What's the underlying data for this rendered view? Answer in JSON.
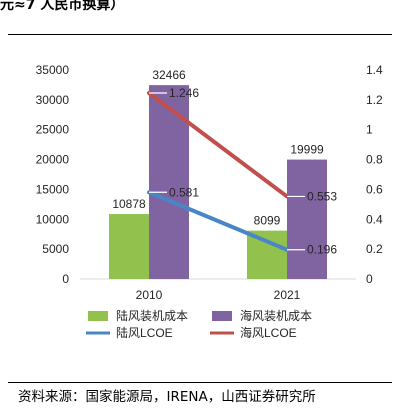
{
  "header": {
    "caption": "元≈7 人民币换算）"
  },
  "footer": {
    "source": "资料来源：国家能源局，IRENA，山西证券研究所"
  },
  "chart_data": {
    "type": "bar",
    "categories": [
      "2010",
      "2021"
    ],
    "series": [
      {
        "name": "陆风装机成本",
        "kind": "bar",
        "axis": "left",
        "color": "#92c24d",
        "values": [
          10878,
          8099
        ],
        "labels": [
          "10878",
          "8099"
        ]
      },
      {
        "name": "海风装机成本",
        "kind": "bar",
        "axis": "left",
        "color": "#8064a2",
        "values": [
          32466,
          19999
        ],
        "labels": [
          "32466",
          "19999"
        ]
      },
      {
        "name": "陆风LCOE",
        "kind": "line",
        "axis": "right",
        "color": "#4a86c5",
        "values": [
          0.581,
          0.196
        ],
        "labels": [
          "0.581",
          "0.196"
        ]
      },
      {
        "name": "海风LCOE",
        "kind": "line",
        "axis": "right",
        "color": "#c0504d",
        "values": [
          1.246,
          0.553
        ],
        "labels": [
          "1.246",
          "0.553"
        ]
      }
    ],
    "left_axis": {
      "min": 0,
      "max": 35000,
      "ticks": [
        "0",
        "5000",
        "10000",
        "15000",
        "20000",
        "25000",
        "30000",
        "35000"
      ]
    },
    "right_axis": {
      "min": 0,
      "max": 1.4,
      "ticks": [
        "0",
        "0.2",
        "0.4",
        "0.6",
        "0.8",
        "1",
        "1.2",
        "1.4"
      ]
    },
    "grid": false,
    "legend_position": "bottom"
  }
}
